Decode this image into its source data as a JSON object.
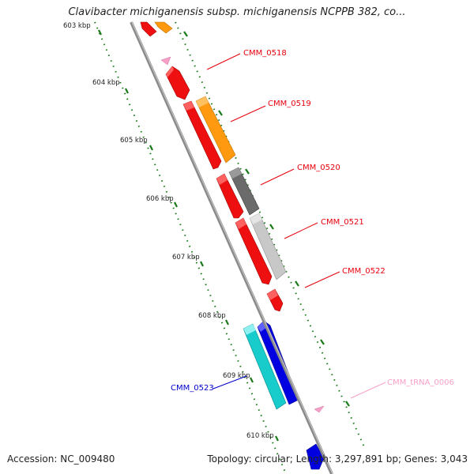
{
  "title": "Clavibacter michiganensis subsp. michiganensis NCPPB 382, co...",
  "footer": {
    "accession": "Accession: NC_009480",
    "summary": "Topology: circular; Length: 3,297,891 bp; Genes: 3,043"
  },
  "scale_labels": [
    "603 kbp",
    "604 kbp",
    "605 kbp",
    "606 kbp",
    "607 kbp",
    "608 kbp",
    "609 kbp",
    "610 kbp"
  ],
  "gene_labels": [
    {
      "text": "CMM_0518",
      "color": "#e8000b"
    },
    {
      "text": "CMM_0519",
      "color": "#e8000b"
    },
    {
      "text": "CMM_0520",
      "color": "#e8000b"
    },
    {
      "text": "CMM_0521",
      "color": "#e8000b"
    },
    {
      "text": "CMM_0522",
      "color": "#e8000b"
    },
    {
      "text": "CMM_0523",
      "color": "#0000cc"
    },
    {
      "text": "CMM_tRNA_0006",
      "color": "#f7a1c8"
    }
  ],
  "colors": {
    "backbone": "#8a8a8a",
    "tick_dots": "#1a7a1a",
    "red_gene": "#ee1010",
    "orange_gene": "#ff9a10",
    "dark_gray_gene": "#6b6b6b",
    "light_gray_gene": "#c8c8c8",
    "cyan_gene": "#18cccc",
    "blue_gene": "#0000e0",
    "trna": "#f7a1c8"
  }
}
